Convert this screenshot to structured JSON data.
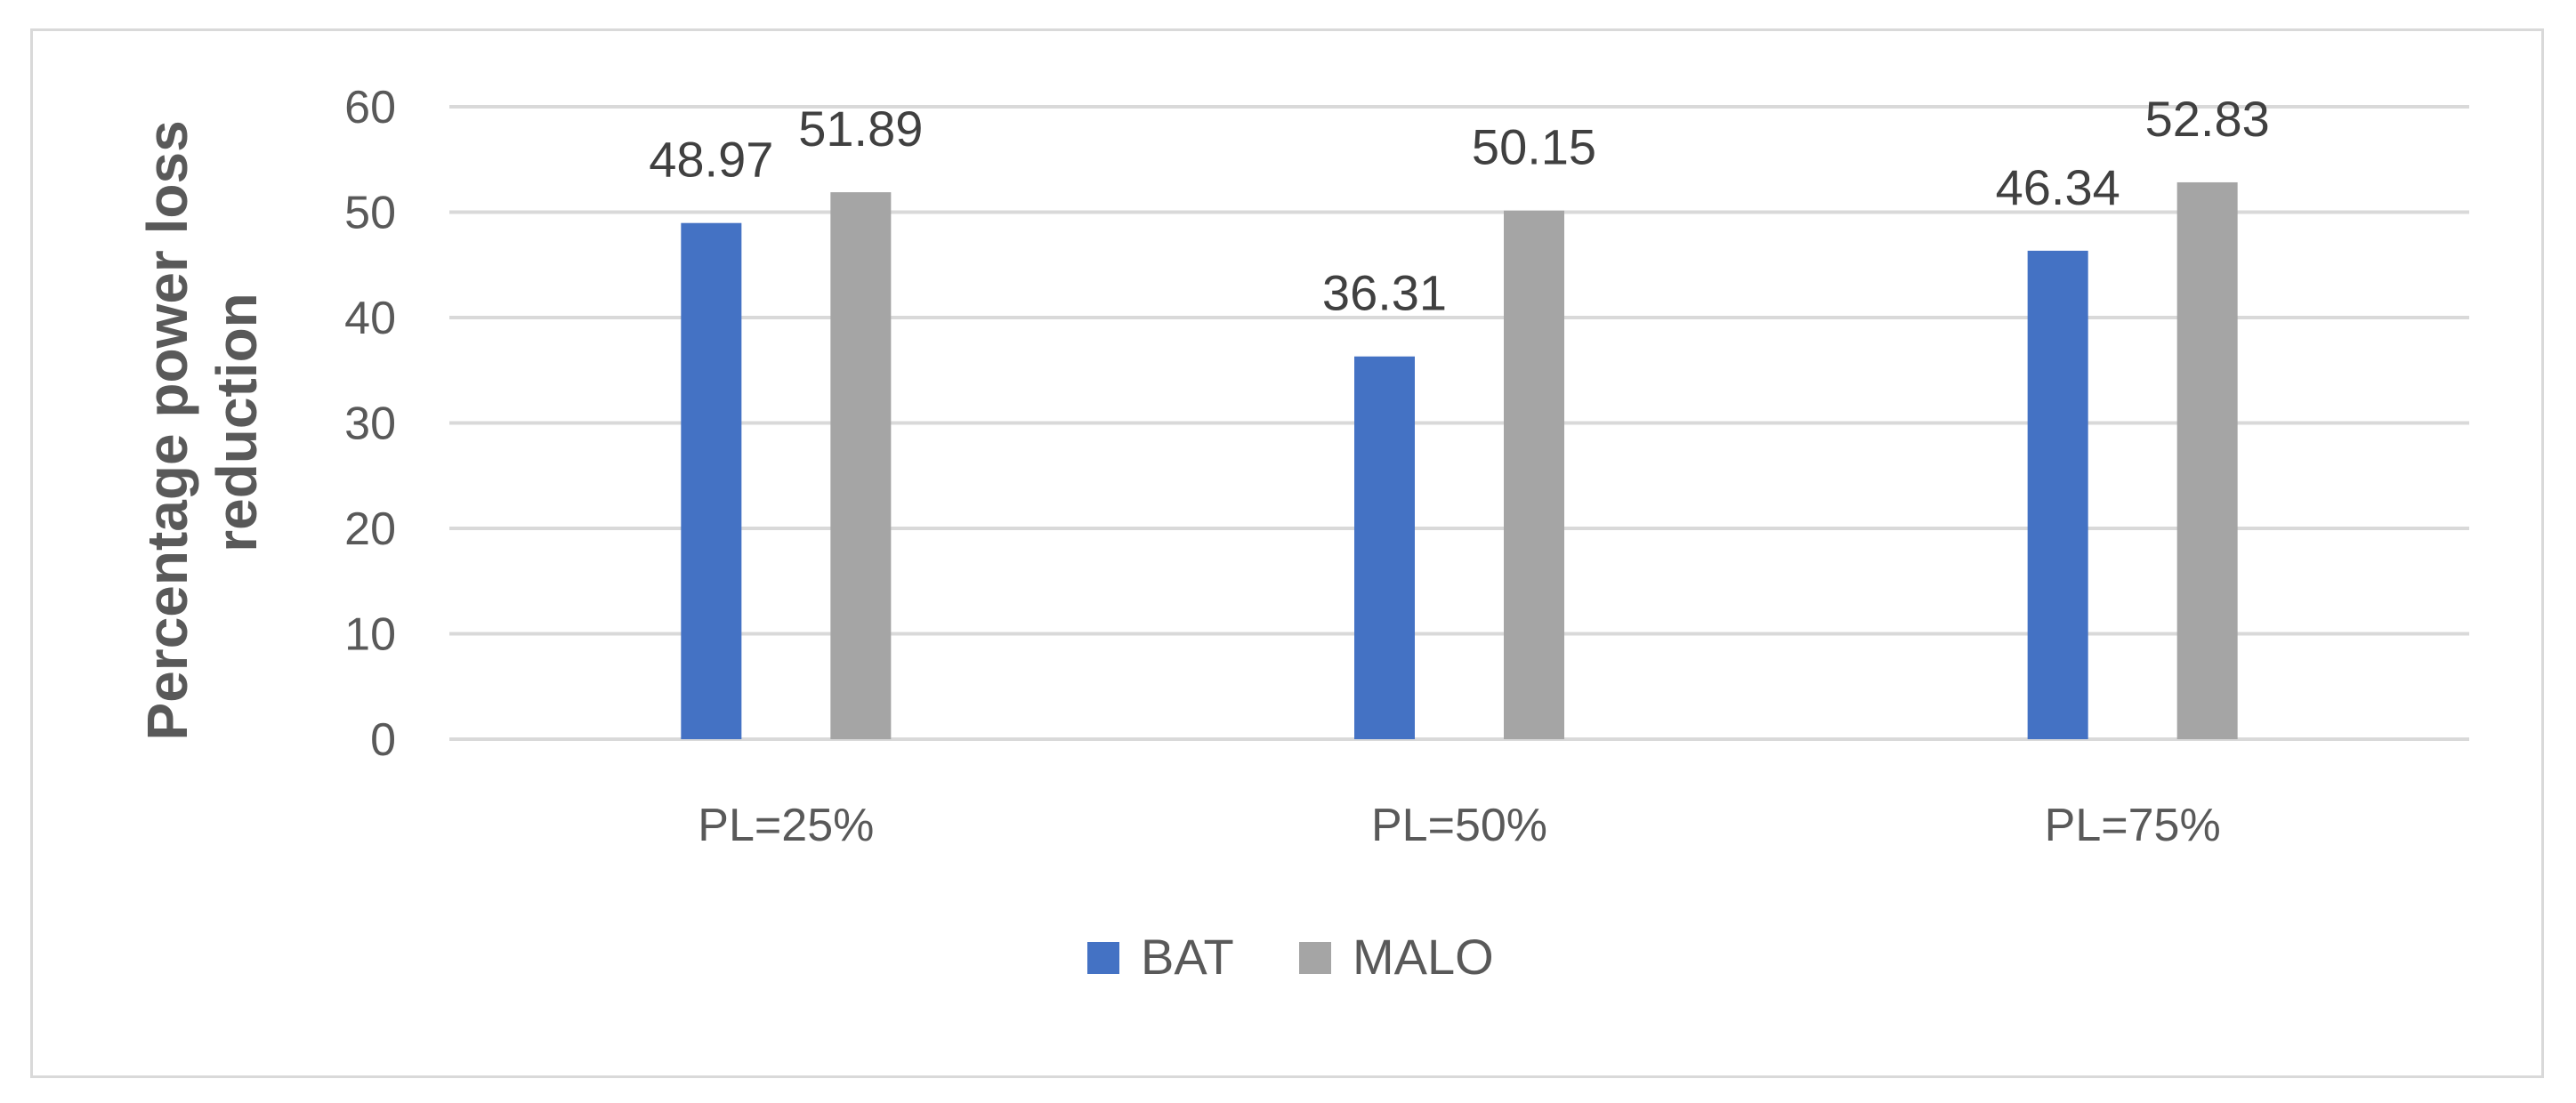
{
  "chart_data": {
    "type": "bar",
    "categories": [
      "PL=25%",
      "PL=50%",
      "PL=75%"
    ],
    "series": [
      {
        "name": "BAT",
        "values": [
          48.97,
          36.31,
          46.34
        ],
        "color": "#4472c4"
      },
      {
        "name": "MALO",
        "values": [
          51.89,
          50.15,
          52.83
        ],
        "color": "#a5a5a5"
      }
    ],
    "data_labels": [
      [
        "48.97",
        "36.31",
        "46.34"
      ],
      [
        "51.89",
        "50.15",
        "52.83"
      ]
    ],
    "ylabel_lines": [
      "Percentage power loss",
      "reduction"
    ],
    "xlabel": "",
    "ylim": [
      0,
      60
    ],
    "yticks": [
      "0",
      "10",
      "20",
      "30",
      "40",
      "50",
      "60"
    ],
    "grid": true,
    "legend_position": "bottom",
    "gridline_color": "#d9d9d9"
  }
}
